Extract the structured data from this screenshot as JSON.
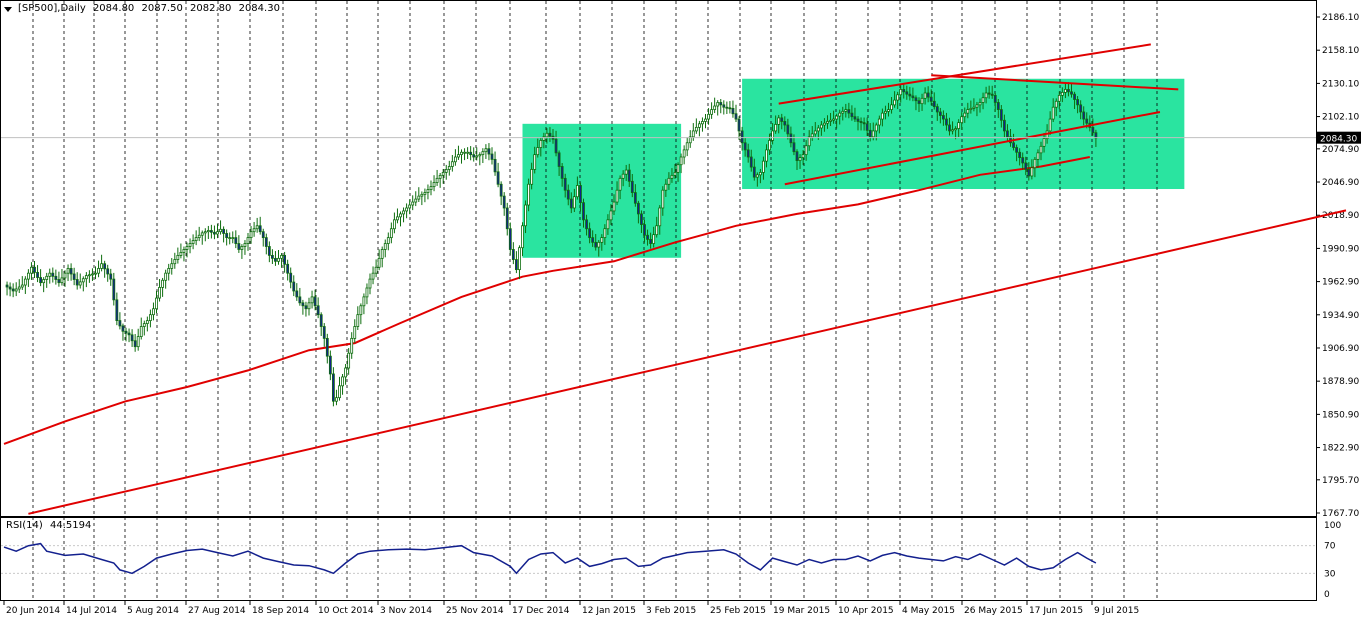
{
  "header": {
    "symbol": "[SP500],Daily",
    "open": "2084.80",
    "high": "2087.50",
    "low": "2082.80",
    "close": "2084.30"
  },
  "rsi_header": {
    "label": "RSI(14)",
    "value": "44.5194"
  },
  "colors": {
    "background": "#ffffff",
    "grid": "#000000",
    "candle": "#0e6d0e",
    "candle_fill": "#13208e",
    "ma": "#e00000",
    "trend": "#e00000",
    "zone": "#1fe39b",
    "rsi_line": "#13208e",
    "price_tag_bg": "#000000",
    "price_tag_text": "#ffffff"
  },
  "chart_data": [
    {
      "type": "candlestick",
      "title": "[SP500],Daily",
      "last_price": "2084.30",
      "ylim": [
        1761,
        2192
      ],
      "y_ticks": [
        "2186.10",
        "2158.10",
        "2130.10",
        "2102.10",
        "2074.90",
        "2046.90",
        "2018.90",
        "1990.90",
        "1962.90",
        "1934.90",
        "1906.90",
        "1878.90",
        "1850.90",
        "1822.90",
        "1795.70",
        "1767.70"
      ],
      "x_ticks": [
        "20 Jun 2014",
        "14 Jul 2014",
        "5 Aug 2014",
        "27 Aug 2014",
        "18 Sep 2014",
        "10 Oct 2014",
        "3 Nov 2014",
        "25 Nov 2014",
        "17 Dec 2014",
        "12 Jan 2015",
        "3 Feb 2015",
        "25 Feb 2015",
        "19 Mar 2015",
        "10 Apr 2015",
        "4 May 2015",
        "26 May 2015",
        "17 Jun 2015",
        "9 Jul 2015"
      ],
      "close_path": [
        [
          0,
          1960
        ],
        [
          3,
          1955
        ],
        [
          6,
          1960
        ],
        [
          9,
          1975
        ],
        [
          12,
          1962
        ],
        [
          15,
          1970
        ],
        [
          18,
          1962
        ],
        [
          21,
          1974
        ],
        [
          24,
          1960
        ],
        [
          27,
          1968
        ],
        [
          30,
          1970
        ],
        [
          32,
          1978
        ],
        [
          35,
          1965
        ],
        [
          37,
          1930
        ],
        [
          39,
          1921
        ],
        [
          41,
          1918
        ],
        [
          43,
          1908
        ],
        [
          45,
          1925
        ],
        [
          47,
          1930
        ],
        [
          49,
          1940
        ],
        [
          51,
          1958
        ],
        [
          53,
          1970
        ],
        [
          55,
          1978
        ],
        [
          57,
          1985
        ],
        [
          59,
          1990
        ],
        [
          61,
          1995
        ],
        [
          63,
          2000
        ],
        [
          65,
          2004
        ],
        [
          67,
          2006
        ],
        [
          69,
          2003
        ],
        [
          71,
          2007
        ],
        [
          73,
          2000
        ],
        [
          75,
          2000
        ],
        [
          77,
          1990
        ],
        [
          79,
          1995
        ],
        [
          81,
          2005
        ],
        [
          83,
          2010
        ],
        [
          85,
          2000
        ],
        [
          87,
          1985
        ],
        [
          89,
          1980
        ],
        [
          91,
          1985
        ],
        [
          93,
          1970
        ],
        [
          95,
          1955
        ],
        [
          97,
          1945
        ],
        [
          99,
          1940
        ],
        [
          101,
          1950
        ],
        [
          103,
          1935
        ],
        [
          105,
          1915
        ],
        [
          107,
          1885
        ],
        [
          108,
          1862
        ],
        [
          109,
          1865
        ],
        [
          110,
          1875
        ],
        [
          112,
          1890
        ],
        [
          114,
          1915
        ],
        [
          116,
          1935
        ],
        [
          118,
          1950
        ],
        [
          120,
          1965
        ],
        [
          122,
          1975
        ],
        [
          124,
          1990
        ],
        [
          126,
          2000
        ],
        [
          128,
          2015
        ],
        [
          130,
          2020
        ],
        [
          132,
          2025
        ],
        [
          134,
          2030
        ],
        [
          136,
          2035
        ],
        [
          138,
          2038
        ],
        [
          140,
          2043
        ],
        [
          142,
          2050
        ],
        [
          144,
          2055
        ],
        [
          146,
          2060
        ],
        [
          148,
          2068
        ],
        [
          150,
          2072
        ],
        [
          152,
          2072
        ],
        [
          154,
          2068
        ],
        [
          156,
          2070
        ],
        [
          158,
          2075
        ],
        [
          160,
          2066
        ],
        [
          162,
          2045
        ],
        [
          164,
          2025
        ],
        [
          166,
          1990
        ],
        [
          168,
          1973
        ],
        [
          170,
          2010
        ],
        [
          172,
          2045
        ],
        [
          174,
          2070
        ],
        [
          176,
          2082
        ],
        [
          178,
          2088
        ],
        [
          180,
          2083
        ],
        [
          182,
          2060
        ],
        [
          184,
          2040
        ],
        [
          186,
          2025
        ],
        [
          188,
          2044
        ],
        [
          190,
          2015
        ],
        [
          192,
          2000
        ],
        [
          194,
          1992
        ],
        [
          196,
          2000
        ],
        [
          198,
          2015
        ],
        [
          200,
          2030
        ],
        [
          202,
          2050
        ],
        [
          204,
          2057
        ],
        [
          206,
          2038
        ],
        [
          208,
          2020
        ],
        [
          210,
          2002
        ],
        [
          212,
          1995
        ],
        [
          214,
          2010
        ],
        [
          216,
          2040
        ],
        [
          218,
          2050
        ],
        [
          220,
          2055
        ],
        [
          222,
          2068
        ],
        [
          224,
          2080
        ],
        [
          226,
          2090
        ],
        [
          228,
          2096
        ],
        [
          230,
          2100
        ],
        [
          232,
          2108
        ],
        [
          234,
          2114
        ],
        [
          236,
          2110
        ],
        [
          238,
          2109
        ],
        [
          240,
          2100
        ],
        [
          242,
          2080
        ],
        [
          244,
          2068
        ],
        [
          246,
          2051
        ],
        [
          248,
          2055
        ],
        [
          250,
          2074
        ],
        [
          252,
          2090
        ],
        [
          254,
          2101
        ],
        [
          256,
          2095
        ],
        [
          258,
          2080
        ],
        [
          260,
          2065
        ],
        [
          262,
          2070
        ],
        [
          264,
          2085
        ],
        [
          266,
          2090
        ],
        [
          268,
          2095
        ],
        [
          270,
          2098
        ],
        [
          272,
          2100
        ],
        [
          274,
          2105
        ],
        [
          276,
          2108
        ],
        [
          278,
          2102
        ],
        [
          280,
          2098
        ],
        [
          282,
          2096
        ],
        [
          284,
          2085
        ],
        [
          286,
          2095
        ],
        [
          288,
          2105
        ],
        [
          290,
          2108
        ],
        [
          292,
          2116
        ],
        [
          294,
          2125
        ],
        [
          296,
          2121
        ],
        [
          298,
          2118
        ],
        [
          300,
          2113
        ],
        [
          302,
          2122
        ],
        [
          304,
          2115
        ],
        [
          306,
          2106
        ],
        [
          308,
          2100
        ],
        [
          310,
          2090
        ],
        [
          312,
          2092
        ],
        [
          314,
          2102
        ],
        [
          316,
          2108
        ],
        [
          318,
          2110
        ],
        [
          320,
          2114
        ],
        [
          322,
          2122
        ],
        [
          324,
          2120
        ],
        [
          326,
          2108
        ],
        [
          328,
          2090
        ],
        [
          330,
          2080
        ],
        [
          332,
          2072
        ],
        [
          334,
          2063
        ],
        [
          336,
          2052
        ],
        [
          338,
          2066
        ],
        [
          340,
          2077
        ],
        [
          342,
          2090
        ],
        [
          344,
          2110
        ],
        [
          346,
          2120
        ],
        [
          348,
          2125
        ],
        [
          350,
          2121
        ],
        [
          352,
          2112
        ],
        [
          354,
          2100
        ],
        [
          356,
          2093
        ],
        [
          358,
          2084
        ]
      ],
      "ma_path": [
        [
          0,
          1826
        ],
        [
          20,
          1845
        ],
        [
          40,
          1862
        ],
        [
          60,
          1874
        ],
        [
          80,
          1888
        ],
        [
          100,
          1905
        ],
        [
          115,
          1911
        ],
        [
          130,
          1928
        ],
        [
          150,
          1950
        ],
        [
          170,
          1967
        ],
        [
          180,
          1972
        ],
        [
          200,
          1980
        ],
        [
          220,
          1996
        ],
        [
          240,
          2010
        ],
        [
          260,
          2020
        ],
        [
          280,
          2028
        ],
        [
          300,
          2040
        ],
        [
          320,
          2053
        ],
        [
          340,
          2060
        ],
        [
          356,
          2068
        ]
      ],
      "annotations": [
        {
          "kind": "zone",
          "x0": 170,
          "x1": 222,
          "y0": 1983,
          "y1": 2096
        },
        {
          "kind": "zone",
          "x0": 242,
          "x1": 387,
          "y0": 2041,
          "y1": 2134
        },
        {
          "kind": "trendline",
          "points": [
            [
              8,
              1767
            ],
            [
              440,
              2023
            ]
          ]
        },
        {
          "kind": "trendline",
          "points": [
            [
              254,
              2113
            ],
            [
              376,
              2163
            ]
          ]
        },
        {
          "kind": "trendline",
          "points": [
            [
              256,
              2045
            ],
            [
              379,
              2106
            ]
          ]
        },
        {
          "kind": "trendline",
          "points": [
            [
              304,
              2137
            ],
            [
              385,
              2125
            ]
          ]
        }
      ]
    },
    {
      "type": "line",
      "title": "RSI(14)",
      "value": "44.5194",
      "ylim": [
        0,
        100
      ],
      "y_ticks": [
        "100",
        "70",
        "30",
        "0"
      ],
      "series": [
        {
          "name": "RSI(14)",
          "points": [
            [
              0,
              68
            ],
            [
              4,
              62
            ],
            [
              8,
              70
            ],
            [
              12,
              73
            ],
            [
              14,
              62
            ],
            [
              20,
              56
            ],
            [
              26,
              58
            ],
            [
              32,
              50
            ],
            [
              36,
              45
            ],
            [
              38,
              35
            ],
            [
              42,
              30
            ],
            [
              46,
              40
            ],
            [
              50,
              52
            ],
            [
              55,
              58
            ],
            [
              60,
              63
            ],
            [
              65,
              65
            ],
            [
              70,
              60
            ],
            [
              75,
              55
            ],
            [
              80,
              62
            ],
            [
              85,
              52
            ],
            [
              90,
              47
            ],
            [
              95,
              42
            ],
            [
              100,
              41
            ],
            [
              105,
              35
            ],
            [
              108,
              30
            ],
            [
              112,
              45
            ],
            [
              116,
              58
            ],
            [
              120,
              62
            ],
            [
              126,
              64
            ],
            [
              132,
              65
            ],
            [
              138,
              64
            ],
            [
              144,
              67
            ],
            [
              150,
              70
            ],
            [
              154,
              60
            ],
            [
              160,
              55
            ],
            [
              166,
              40
            ],
            [
              168,
              30
            ],
            [
              172,
              50
            ],
            [
              176,
              58
            ],
            [
              180,
              60
            ],
            [
              184,
              45
            ],
            [
              188,
              52
            ],
            [
              192,
              40
            ],
            [
              196,
              44
            ],
            [
              200,
              50
            ],
            [
              204,
              52
            ],
            [
              208,
              40
            ],
            [
              212,
              42
            ],
            [
              216,
              52
            ],
            [
              220,
              56
            ],
            [
              224,
              60
            ],
            [
              230,
              62
            ],
            [
              236,
              64
            ],
            [
              240,
              58
            ],
            [
              244,
              45
            ],
            [
              248,
              35
            ],
            [
              252,
              52
            ],
            [
              256,
              47
            ],
            [
              260,
              42
            ],
            [
              264,
              50
            ],
            [
              268,
              45
            ],
            [
              272,
              50
            ],
            [
              276,
              50
            ],
            [
              280,
              55
            ],
            [
              284,
              48
            ],
            [
              288,
              56
            ],
            [
              292,
              60
            ],
            [
              296,
              55
            ],
            [
              300,
              52
            ],
            [
              304,
              50
            ],
            [
              308,
              48
            ],
            [
              312,
              54
            ],
            [
              316,
              50
            ],
            [
              320,
              58
            ],
            [
              324,
              50
            ],
            [
              328,
              42
            ],
            [
              332,
              52
            ],
            [
              336,
              40
            ],
            [
              340,
              35
            ],
            [
              344,
              38
            ],
            [
              348,
              50
            ],
            [
              352,
              60
            ],
            [
              355,
              52
            ],
            [
              358,
              45
            ]
          ]
        }
      ]
    }
  ]
}
